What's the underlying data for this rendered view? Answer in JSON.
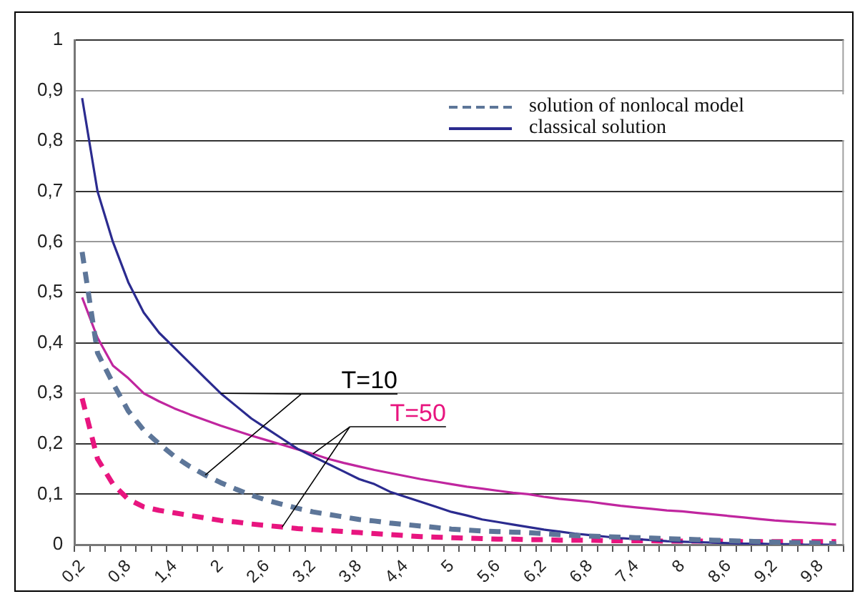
{
  "chart_data": {
    "type": "line",
    "categories": [
      "0,2",
      null,
      null,
      "0,8",
      null,
      null,
      "1,4",
      null,
      null,
      "2",
      null,
      null,
      "2,6",
      null,
      null,
      "3,2",
      null,
      null,
      "3,8",
      null,
      null,
      "4,4",
      null,
      null,
      "5",
      null,
      null,
      "5,6",
      null,
      null,
      "6,2",
      null,
      null,
      "6,8",
      null,
      null,
      "7,4",
      null,
      null,
      "8",
      null,
      null,
      "8,6",
      null,
      null,
      "9,2",
      null,
      null,
      "9,8",
      null
    ],
    "series": [
      {
        "name": "solution of nonlocal model",
        "color": "#5d7699",
        "line_style": "dashed",
        "values": [
          0.58,
          0.38,
          0.32,
          0.265,
          0.227,
          0.2,
          0.175,
          0.155,
          0.138,
          0.123,
          0.11,
          0.098,
          0.088,
          0.08,
          0.072,
          0.065,
          0.06,
          0.055,
          0.05,
          0.047,
          0.043,
          0.04,
          0.037,
          0.034,
          0.031,
          0.029,
          0.027,
          0.026,
          0.025,
          0.024,
          0.022,
          0.02,
          0.018,
          0.017,
          0.016,
          0.015,
          0.014,
          0.013,
          0.012,
          0.011,
          0.01,
          0.009,
          0.008,
          0.007,
          0.006,
          0.005,
          0.004,
          0.004,
          0.003,
          0.002
        ]
      },
      {
        "name": "classical solution",
        "color": "#2b2b8f",
        "line_style": "solid",
        "values": [
          0.885,
          0.7,
          0.6,
          0.52,
          0.46,
          0.42,
          0.39,
          0.36,
          0.33,
          0.3,
          0.275,
          0.25,
          0.23,
          0.21,
          0.19,
          0.175,
          0.16,
          0.145,
          0.13,
          0.12,
          0.105,
          0.095,
          0.085,
          0.075,
          0.065,
          0.058,
          0.05,
          0.045,
          0.04,
          0.035,
          0.03,
          0.026,
          0.022,
          0.019,
          0.016,
          0.013,
          0.011,
          0.009,
          0.007,
          0.006,
          0.005,
          0.004,
          0.003,
          0.002,
          0.002,
          0.001,
          0.001,
          0,
          0,
          0
        ]
      },
      {
        "color": "#c0269f",
        "line_style": "solid",
        "values": [
          0.49,
          0.41,
          0.355,
          0.33,
          0.3,
          0.284,
          0.27,
          0.258,
          0.247,
          0.236,
          0.226,
          0.216,
          0.207,
          0.198,
          0.189,
          0.18,
          0.17,
          0.162,
          0.155,
          0.148,
          0.142,
          0.136,
          0.13,
          0.125,
          0.12,
          0.115,
          0.111,
          0.107,
          0.103,
          0.1,
          0.095,
          0.091,
          0.088,
          0.085,
          0.081,
          0.077,
          0.074,
          0.071,
          0.068,
          0.066,
          0.063,
          0.06,
          0.057,
          0.054,
          0.051,
          0.048,
          0.046,
          0.044,
          0.042,
          0.04
        ]
      },
      {
        "color": "#e8157f",
        "line_style": "dashed",
        "values": [
          0.29,
          0.17,
          0.12,
          0.09,
          0.075,
          0.068,
          0.063,
          0.058,
          0.053,
          0.048,
          0.045,
          0.041,
          0.038,
          0.035,
          0.032,
          0.03,
          0.028,
          0.026,
          0.024,
          0.022,
          0.02,
          0.018,
          0.016,
          0.015,
          0.014,
          0.013,
          0.012,
          0.011,
          0.011,
          0.01,
          0.01,
          0.009,
          0.009,
          0.009,
          0.008,
          0.008,
          0.008,
          0.008,
          0.007,
          0.007,
          0.007,
          0.007,
          0.007,
          0.006,
          0.006,
          0.006,
          0.006,
          0.006,
          0.006,
          0.006
        ]
      }
    ],
    "ylim": [
      0,
      1
    ],
    "yticks": [
      0,
      {
        "value": 0.1,
        "label": "0,1"
      },
      {
        "value": 0.2,
        "label": "0,2"
      },
      {
        "value": 0.3,
        "label": "0,3"
      },
      {
        "value": 0.4,
        "label": "0,4"
      },
      {
        "value": 0.5,
        "label": "0,5"
      },
      {
        "value": 0.6,
        "label": "0,6"
      },
      {
        "value": 0.7,
        "label": "0,7"
      },
      {
        "value": 0.8,
        "label": "0,8"
      },
      {
        "value": 0.9,
        "label": "0,9"
      },
      1
    ],
    "grid": "y",
    "legend": "top right",
    "marker": "none",
    "annotations": [
      "T=10",
      "T=50"
    ]
  }
}
